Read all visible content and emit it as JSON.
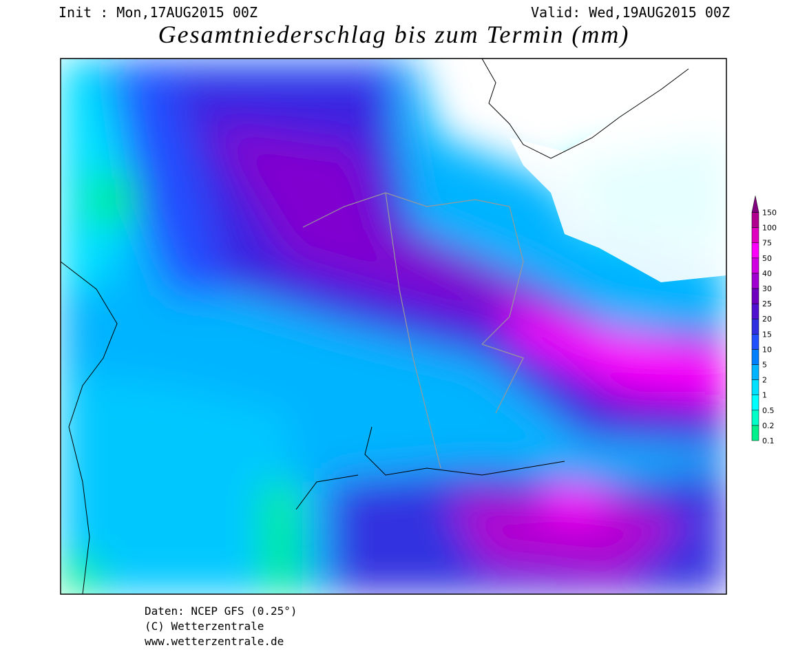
{
  "header": {
    "init": "Init : Mon,17AUG2015 00Z",
    "valid": "Valid: Wed,19AUG2015 00Z",
    "title": "Gesamtniederschlag bis zum Termin (mm)"
  },
  "legend": {
    "levels": [
      "0.1",
      "0.2",
      "0.5",
      "1",
      "2",
      "5",
      "10",
      "15",
      "20",
      "25",
      "30",
      "40",
      "50",
      "75",
      "100",
      "150"
    ],
    "colors": [
      "#00f08c",
      "#00ffc8",
      "#00ffff",
      "#00e0ff",
      "#00b4ff",
      "#0080ff",
      "#2050ff",
      "#3030e0",
      "#5010d0",
      "#7000c0",
      "#a000d0",
      "#d000e0",
      "#ff00ff",
      "#e000c0",
      "#b00090",
      "#800080"
    ]
  },
  "footer": {
    "lines": [
      "Daten: NCEP GFS (0.25°)",
      "(C) Wetterzentrale",
      "www.wetterzentrale.de"
    ]
  }
}
